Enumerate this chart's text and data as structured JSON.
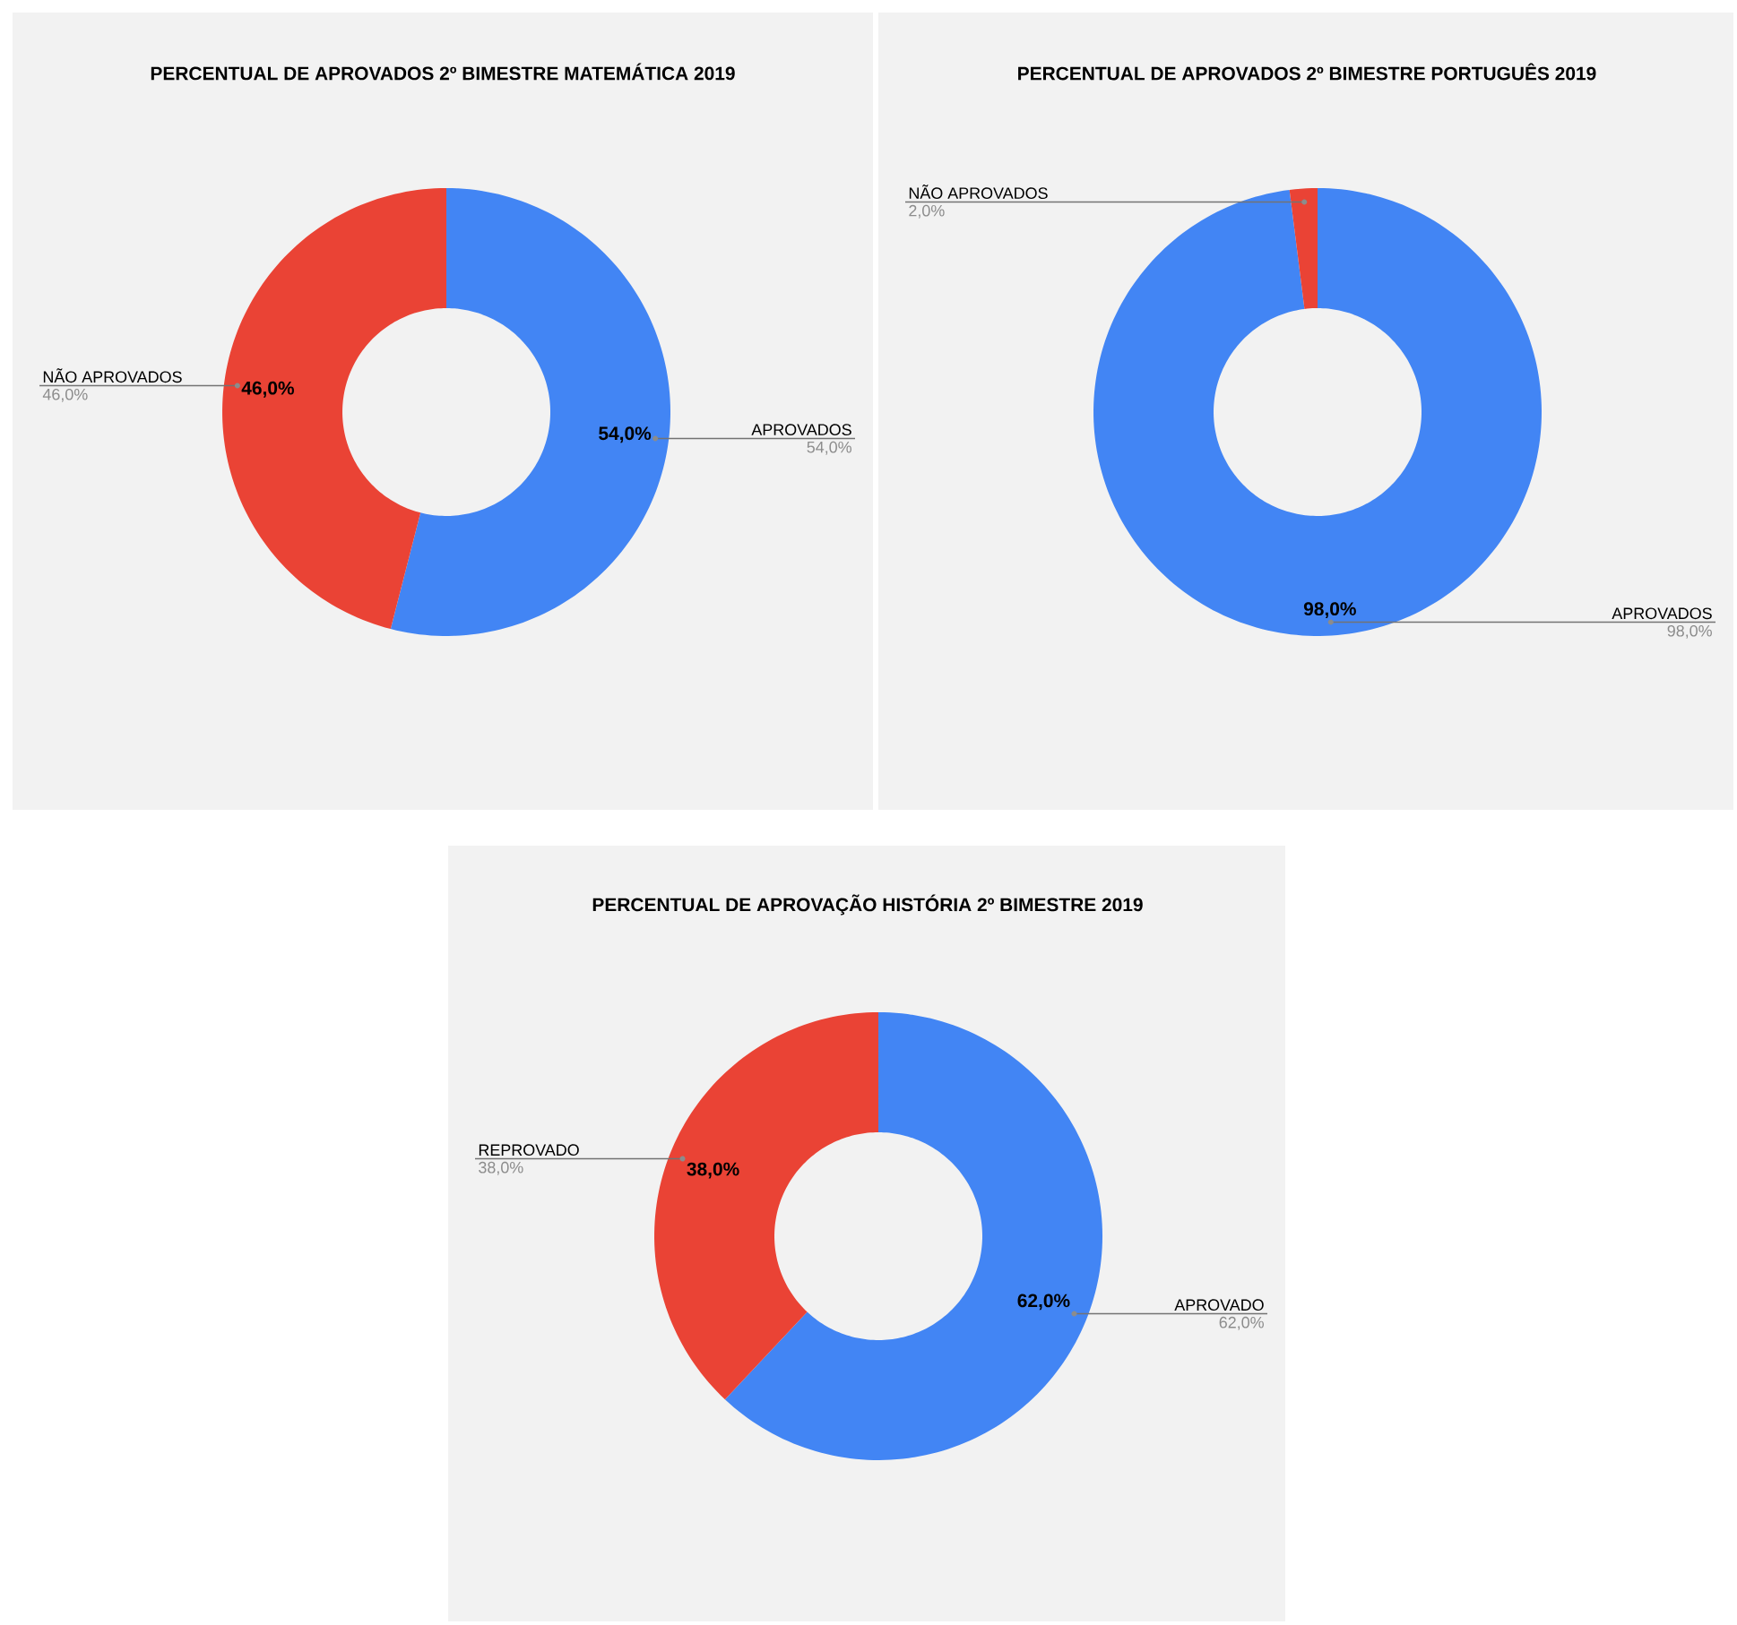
{
  "chart_data": [
    {
      "type": "donut",
      "title": "PERCENTUAL DE APROVADOS 2º BIMESTRE MATEMÁTICA 2019",
      "categories": [
        "APROVADOS",
        "NÃO APROVADOS"
      ],
      "values": [
        54,
        46
      ],
      "colors": [
        "#4285f4",
        "#ea4335"
      ],
      "value_labels": [
        "54,0%",
        "46,0%"
      ]
    },
    {
      "type": "donut",
      "title": "PERCENTUAL DE APROVADOS 2º BIMESTRE PORTUGUÊS 2019",
      "categories": [
        "APROVADOS",
        "NÃO APROVADOS"
      ],
      "values": [
        98,
        2
      ],
      "colors": [
        "#4285f4",
        "#ea4335"
      ],
      "value_labels": [
        "98,0%",
        "2,0%"
      ]
    },
    {
      "type": "donut",
      "title": "PERCENTUAL DE APROVAÇÃO HISTÓRIA 2º BIMESTRE 2019",
      "categories": [
        "APROVADO",
        "REPROVADO"
      ],
      "values": [
        62,
        38
      ],
      "colors": [
        "#4285f4",
        "#ea4335"
      ],
      "value_labels": [
        "62,0%",
        "38,0%"
      ]
    }
  ]
}
